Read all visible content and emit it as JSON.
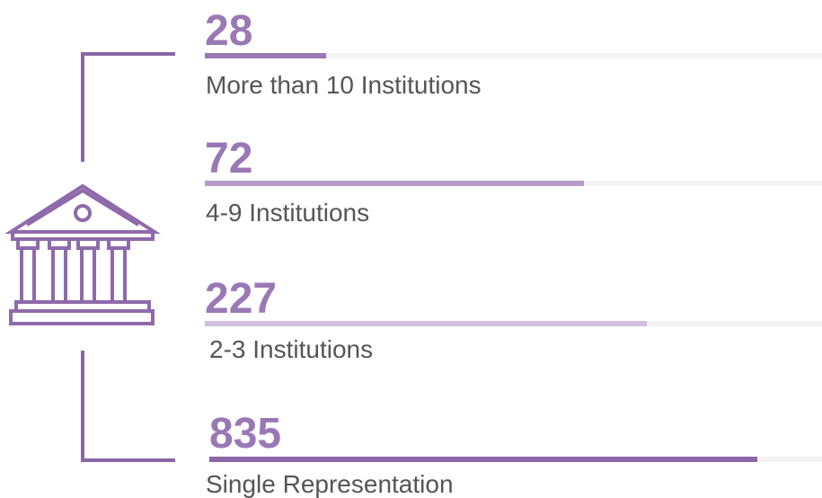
{
  "items": [
    {
      "value": 28,
      "label": "More than 10 Institutions"
    },
    {
      "value": 72,
      "label": "4-9 Institutions"
    },
    {
      "value": 227,
      "label": "2-3 Institutions"
    },
    {
      "value": 835,
      "label": "Single Representation"
    }
  ]
}
